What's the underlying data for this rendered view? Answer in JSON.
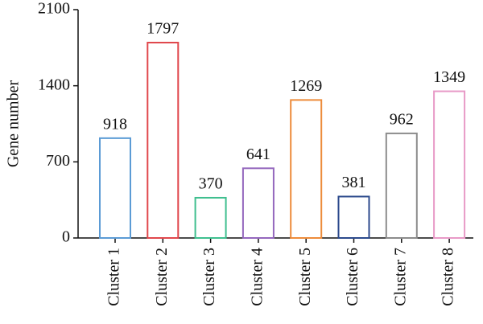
{
  "chart_data": {
    "type": "bar",
    "y_label": "Gene number",
    "categories": [
      "Cluster 1",
      "Cluster 2",
      "Cluster 3",
      "Cluster 4",
      "Cluster 5",
      "Cluster 6",
      "Cluster 7",
      "Cluster 8"
    ],
    "values": [
      918,
      1797,
      370,
      641,
      1269,
      381,
      962,
      1349
    ],
    "colors": [
      "#5b9bd5",
      "#e0474c",
      "#3fbf8f",
      "#9467bd",
      "#ed8b3a",
      "#2c4a8c",
      "#8c8c8c",
      "#e89ac7"
    ],
    "ylim": [
      0,
      2100
    ],
    "yticks": [
      0,
      700,
      1400,
      2100
    ]
  }
}
